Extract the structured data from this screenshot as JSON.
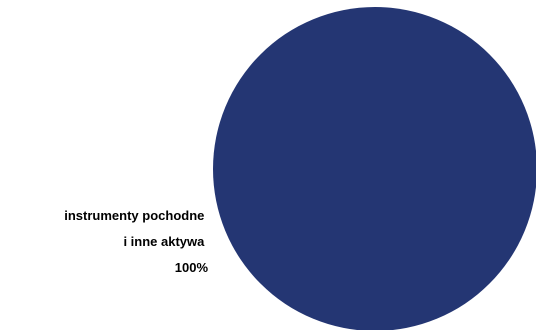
{
  "chart_data": {
    "type": "pie",
    "title": "",
    "slices": [
      {
        "label_lines": [
          "instrumenty pochodne",
          "i inne aktywa",
          "100%"
        ],
        "value": 100,
        "color": "#243673"
      }
    ],
    "legend": "none",
    "data_labels": "outside-left"
  }
}
